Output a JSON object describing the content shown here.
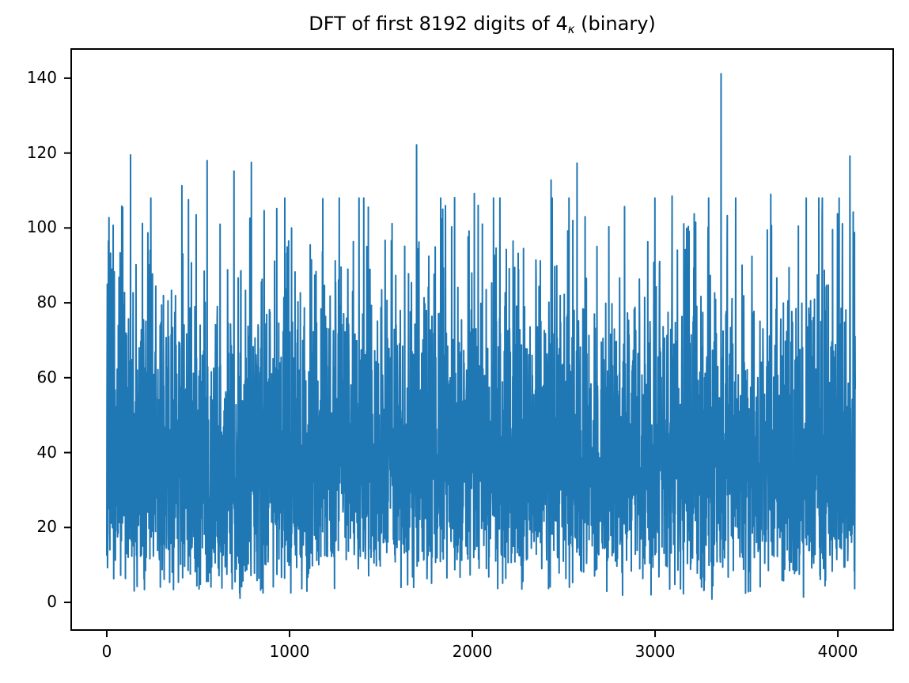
{
  "figure": {
    "background": "#ffffff",
    "title": {
      "prefix": "DFT of first 8192 digits of 4",
      "subscript": "κ",
      "suffix": " (binary)"
    }
  },
  "chart_data": {
    "type": "line",
    "title": "DFT of first 8192 digits of 4κ (binary)",
    "xlabel": "",
    "ylabel": "",
    "legend": null,
    "grid": false,
    "line_color": "#1f77b4",
    "line_width": 2,
    "frame_color": "#000000",
    "xlim": [
      -199,
      4307
    ],
    "ylim": [
      -7.6,
      148.0
    ],
    "x_ticks": [
      0,
      1000,
      2000,
      3000,
      4000
    ],
    "y_ticks": [
      0,
      20,
      40,
      60,
      80,
      100,
      120,
      140
    ],
    "n_points": 4096,
    "x_start": 0,
    "x_step": 1,
    "description": "One-sided DFT magnitude spectrum of an 8192-digit binary sequence; appears as a dense noise-like band of vertical excursions mostly between ~10 and ~100 with isolated taller spikes.",
    "noise_model": {
      "distribution": "rayleigh",
      "sigma": 32,
      "seed": 1234,
      "min_value": 0.8,
      "cap_value": 108
    },
    "y_max_observed": 141.2,
    "notable_peaks": [
      [
        9,
        96.5
      ],
      [
        35,
        100.7
      ],
      [
        87,
        105.5
      ],
      [
        130,
        119.5
      ],
      [
        195,
        101.2
      ],
      [
        411,
        111.3
      ],
      [
        489,
        103.5
      ],
      [
        549,
        118.0
      ],
      [
        620,
        101.0
      ],
      [
        696,
        115.2
      ],
      [
        791,
        117.5
      ],
      [
        861,
        104.6
      ],
      [
        930,
        105.2
      ],
      [
        995,
        96.5
      ],
      [
        1120,
        91.5
      ],
      [
        1250,
        91.2
      ],
      [
        1319,
        89.0
      ],
      [
        1406,
        108.0
      ],
      [
        1523,
        96.7
      ],
      [
        1695,
        122.2
      ],
      [
        1838,
        105.0
      ],
      [
        1903,
        108.1
      ],
      [
        2011,
        109.2
      ],
      [
        2130,
        94.6
      ],
      [
        2280,
        94.5
      ],
      [
        2431,
        112.8
      ],
      [
        2522,
        99.2
      ],
      [
        2573,
        117.3
      ],
      [
        2617,
        103.0
      ],
      [
        2747,
        100.3
      ],
      [
        2833,
        105.7
      ],
      [
        2960,
        96.3
      ],
      [
        3093,
        108.5
      ],
      [
        3157,
        101.1
      ],
      [
        3290,
        100.2
      ],
      [
        3361,
        141.2
      ],
      [
        3395,
        103.3
      ],
      [
        3530,
        92.4
      ],
      [
        3633,
        109.0
      ],
      [
        3784,
        100.5
      ],
      [
        3914,
        103.0
      ],
      [
        4066,
        119.2
      ]
    ]
  }
}
